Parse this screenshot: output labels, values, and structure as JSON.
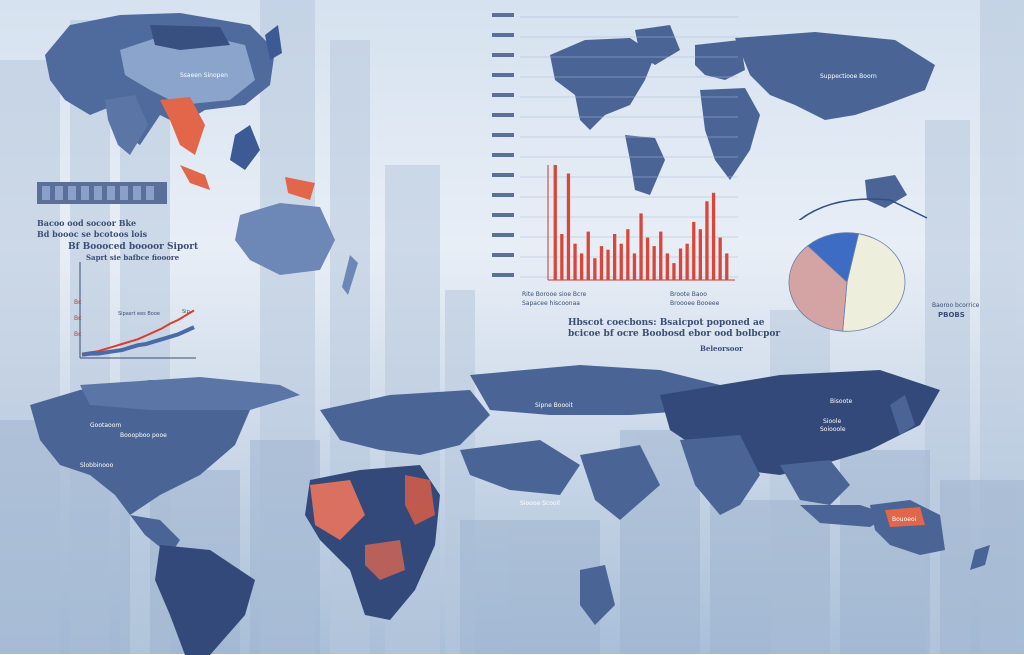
{
  "colors": {
    "land": "#4a6496",
    "land_dark": "#33497a",
    "highlight": "#e2664a",
    "bar": "#d9473a",
    "pie": [
      "#eeeedd",
      "#d4a4a4",
      "#3c6cc4"
    ],
    "line_red": "#e03a2a",
    "line_blue": "#4a6aa8"
  },
  "text": {
    "map_asia_label": "Ssaeen Sinopen",
    "left_legend_line1": "Bacoo ood socoor Bke",
    "left_legend_line2": "Bd boooc se bcotoos lois",
    "line_chart_title": "Bf Boooced boooor Siport",
    "line_chart_subtitle": "Saprt sie bafbce fiooore",
    "line_chart_tag": "Sip",
    "line_chart_label": "Sipasrt ees Booe",
    "bar_caption_a": "Rite Borooe sioe Bcre",
    "bar_caption_b": "Broote Baoo",
    "bar_caption_c": "Sapacee hiscoonaa",
    "bar_caption_d": "Broooee Booeee",
    "world_map_top_label": "Suppectiooe Boorn",
    "center_caption_line1": "Hbscot coecbons: Bsaicpot poponed ae",
    "center_caption_line2": "bcicoe bf ocre Boobosd ebor ood bolbcpor",
    "center_caption_line3": "Beleorsoor",
    "right_caption_line1": "Baoroo bcorrice",
    "right_caption_line2": "PBOBS",
    "lower_map_label_a": "Gootaoom",
    "lower_map_label_b": "Slobbinooo",
    "lower_map_label_c": "Booopboo pooe",
    "lower_map_label_d": "Sipne Boooit",
    "lower_map_label_e": "Sioooe Scooil",
    "lower_map_label_f": "Bisoote",
    "lower_map_label_g": "Sioole",
    "lower_map_label_h": "Soiooole",
    "lower_map_label_i": "Bouoeoi"
  },
  "chart_data": [
    {
      "type": "bar",
      "values": [
        95,
        38,
        88,
        30,
        22,
        40,
        18,
        28,
        25,
        38,
        30,
        42,
        22,
        55,
        35,
        28,
        40,
        22,
        14,
        26,
        30,
        48,
        42,
        65,
        72,
        35,
        22
      ]
    },
    {
      "type": "pie",
      "values": [
        48,
        37,
        15
      ]
    },
    {
      "type": "line",
      "series": [
        {
          "values": [
            2,
            3,
            4,
            6,
            8,
            10,
            12,
            14,
            17,
            20,
            23,
            27,
            30,
            34,
            38
          ]
        },
        {
          "values": [
            1,
            2,
            2,
            3,
            4,
            5,
            7,
            9,
            10,
            12,
            14,
            16,
            18,
            21,
            24
          ]
        }
      ]
    }
  ],
  "y_tick_stub": "Bc"
}
